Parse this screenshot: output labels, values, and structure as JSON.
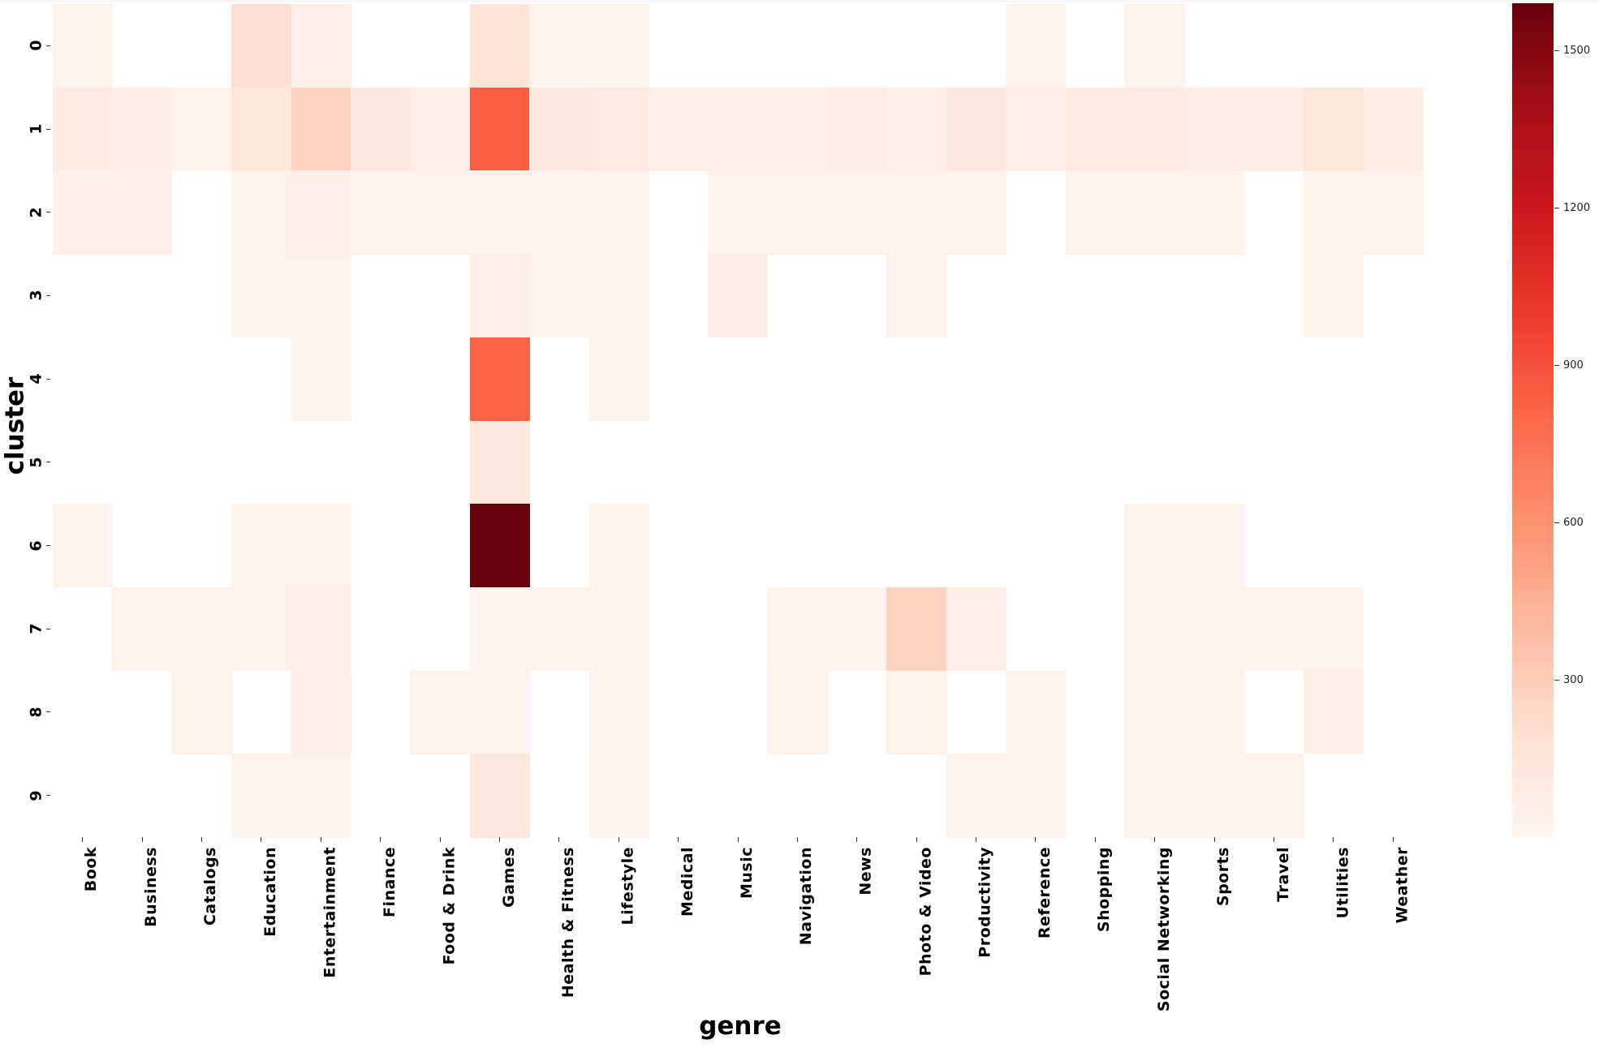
{
  "chart_data": {
    "type": "heatmap",
    "title": "",
    "xlabel": "genre",
    "ylabel": "cluster",
    "colormap": "Reds",
    "colorbar": {
      "vmin": 0,
      "vmax": 1590,
      "ticks": [
        300,
        600,
        900,
        1200,
        1500
      ]
    },
    "x": [
      "Book",
      "Business",
      "Catalogs",
      "Education",
      "Entertainment",
      "Finance",
      "Food & Drink",
      "Games",
      "Health & Fitness",
      "Lifestyle",
      "Medical",
      "Music",
      "Navigation",
      "News",
      "Photo & Video",
      "Productivity",
      "Reference",
      "Shopping",
      "Social Networking",
      "Sports",
      "Travel",
      "Utilities",
      "Weather"
    ],
    "y": [
      "0",
      "1",
      "2",
      "3",
      "4",
      "5",
      "6",
      "7",
      "8",
      "9"
    ],
    "values": [
      [
        30,
        null,
        null,
        200,
        60,
        null,
        null,
        160,
        30,
        30,
        null,
        null,
        null,
        null,
        null,
        null,
        30,
        null,
        30,
        null,
        null,
        null,
        null
      ],
      [
        90,
        70,
        35,
        140,
        270,
        110,
        60,
        840,
        120,
        105,
        40,
        55,
        55,
        75,
        55,
        110,
        55,
        100,
        95,
        75,
        70,
        140,
        80
      ],
      [
        40,
        40,
        null,
        35,
        45,
        30,
        30,
        35,
        35,
        35,
        null,
        30,
        30,
        30,
        30,
        30,
        null,
        30,
        30,
        30,
        null,
        30,
        30
      ],
      [
        null,
        null,
        null,
        35,
        35,
        null,
        null,
        60,
        35,
        35,
        null,
        70,
        null,
        null,
        35,
        null,
        null,
        null,
        null,
        null,
        null,
        30,
        null
      ],
      [
        null,
        null,
        null,
        null,
        30,
        null,
        null,
        820,
        null,
        30,
        null,
        null,
        null,
        null,
        null,
        null,
        null,
        null,
        null,
        null,
        null,
        null,
        null
      ],
      [
        null,
        null,
        null,
        null,
        null,
        null,
        null,
        110,
        null,
        null,
        null,
        null,
        null,
        null,
        null,
        null,
        null,
        null,
        null,
        null,
        null,
        null,
        null
      ],
      [
        35,
        null,
        null,
        35,
        35,
        null,
        null,
        1590,
        null,
        30,
        null,
        null,
        null,
        null,
        null,
        null,
        null,
        null,
        35,
        35,
        null,
        null,
        null
      ],
      [
        null,
        35,
        35,
        35,
        50,
        null,
        null,
        35,
        35,
        35,
        null,
        null,
        35,
        35,
        270,
        50,
        null,
        null,
        35,
        35,
        35,
        35,
        null
      ],
      [
        null,
        null,
        30,
        null,
        55,
        null,
        30,
        35,
        null,
        35,
        null,
        null,
        30,
        null,
        30,
        null,
        35,
        null,
        30,
        30,
        null,
        50,
        null
      ],
      [
        null,
        null,
        null,
        35,
        35,
        null,
        null,
        130,
        null,
        30,
        null,
        null,
        null,
        null,
        null,
        30,
        30,
        null,
        30,
        30,
        30,
        null,
        null
      ]
    ],
    "grid": false,
    "legend": "colorbar right"
  }
}
